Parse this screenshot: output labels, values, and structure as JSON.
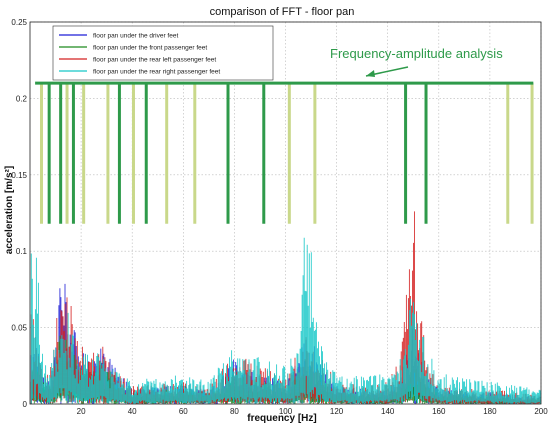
{
  "chart_data": {
    "type": "line",
    "title": "comparison of FFT - floor pan",
    "xlabel": "frequency [Hz]",
    "ylabel": "acceleration [m/s²]",
    "xlim": [
      0,
      200
    ],
    "ylim": [
      0,
      0.25
    ],
    "xticks": [
      20,
      40,
      60,
      80,
      100,
      120,
      140,
      160,
      180,
      200
    ],
    "xtick_labels": [
      "20",
      "40",
      "60",
      "80",
      "100",
      "120",
      "140",
      "160",
      "180",
      "200"
    ],
    "yticks": [
      0,
      0.05,
      0.1,
      0.15,
      0.2,
      0.25
    ],
    "ytick_labels": [
      "0",
      "0.05",
      "0.1",
      "0.15",
      "0.2",
      "0.25"
    ],
    "grid": true,
    "legend_position": "top-left",
    "series": [
      {
        "name": "floor pan under the driver feet",
        "color": "#1f1fd6",
        "x": [
          2,
          5,
          8,
          10,
          12,
          15,
          18,
          20,
          25,
          28,
          30,
          35,
          40,
          50,
          60,
          70,
          80,
          90,
          100,
          105,
          108,
          115,
          120,
          130,
          140,
          145,
          150,
          155,
          160,
          170,
          180,
          190,
          200
        ],
        "y": [
          0.05,
          0.02,
          0.02,
          0.04,
          0.09,
          0.07,
          0.045,
          0.035,
          0.03,
          0.05,
          0.035,
          0.02,
          0.01,
          0.012,
          0.012,
          0.01,
          0.03,
          0.02,
          0.015,
          0.03,
          0.05,
          0.025,
          0.012,
          0.01,
          0.01,
          0.02,
          0.055,
          0.02,
          0.01,
          0.008,
          0.008,
          0.006,
          0.005
        ]
      },
      {
        "name": "floor pan under the front passenger feet",
        "color": "#1f8a1f",
        "x": [
          2,
          5,
          8,
          10,
          12,
          15,
          18,
          20,
          25,
          28,
          30,
          35,
          40,
          50,
          60,
          70,
          80,
          90,
          100,
          105,
          108,
          115,
          120,
          130,
          140,
          145,
          150,
          155,
          160,
          170,
          180,
          190,
          200
        ],
        "y": [
          0.03,
          0.015,
          0.015,
          0.025,
          0.05,
          0.04,
          0.03,
          0.025,
          0.02,
          0.03,
          0.025,
          0.015,
          0.008,
          0.009,
          0.01,
          0.008,
          0.02,
          0.015,
          0.01,
          0.02,
          0.03,
          0.015,
          0.008,
          0.007,
          0.007,
          0.012,
          0.03,
          0.012,
          0.007,
          0.006,
          0.005,
          0.004,
          0.004
        ]
      },
      {
        "name": "floor pan under the rear left passenger feet",
        "color": "#d42020",
        "x": [
          2,
          5,
          8,
          10,
          12,
          15,
          18,
          20,
          25,
          28,
          30,
          35,
          40,
          50,
          60,
          70,
          80,
          90,
          100,
          105,
          108,
          115,
          120,
          130,
          140,
          145,
          150,
          155,
          160,
          170,
          180,
          190,
          200
        ],
        "y": [
          0.06,
          0.02,
          0.025,
          0.045,
          0.1,
          0.08,
          0.05,
          0.04,
          0.035,
          0.045,
          0.03,
          0.02,
          0.012,
          0.014,
          0.015,
          0.012,
          0.035,
          0.025,
          0.018,
          0.035,
          0.05,
          0.03,
          0.015,
          0.012,
          0.015,
          0.03,
          0.15,
          0.03,
          0.012,
          0.01,
          0.01,
          0.008,
          0.006
        ]
      },
      {
        "name": "floor pan under the rear right passenger feet",
        "color": "#16c8c8",
        "x": [
          2,
          5,
          8,
          10,
          12,
          15,
          18,
          20,
          25,
          28,
          30,
          35,
          40,
          50,
          60,
          70,
          80,
          90,
          100,
          105,
          108,
          115,
          120,
          130,
          140,
          145,
          150,
          155,
          160,
          170,
          180,
          190,
          200
        ],
        "y": [
          0.12,
          0.03,
          0.03,
          0.04,
          0.08,
          0.06,
          0.04,
          0.035,
          0.03,
          0.04,
          0.03,
          0.02,
          0.015,
          0.018,
          0.02,
          0.015,
          0.04,
          0.03,
          0.025,
          0.04,
          0.13,
          0.03,
          0.02,
          0.018,
          0.02,
          0.03,
          0.08,
          0.04,
          0.02,
          0.018,
          0.015,
          0.012,
          0.01
        ]
      }
    ],
    "annotation": {
      "text": "Frequency-amplitude analysis",
      "color": "#2e9a4a",
      "bar_y": 0.21,
      "bar_y_bottom": 0.118,
      "markers": [
        {
          "x": 4.5,
          "color": "#c9d88a"
        },
        {
          "x": 7.5,
          "color": "#2e9a4a"
        },
        {
          "x": 12,
          "color": "#2e9a4a"
        },
        {
          "x": 14.5,
          "color": "#c9d88a"
        },
        {
          "x": 17,
          "color": "#2e9a4a"
        },
        {
          "x": 21,
          "color": "#c9d88a"
        },
        {
          "x": 30.5,
          "color": "#c9d88a"
        },
        {
          "x": 35,
          "color": "#2e9a4a"
        },
        {
          "x": 40.5,
          "color": "#c9d88a"
        },
        {
          "x": 45.5,
          "color": "#2e9a4a"
        },
        {
          "x": 53.5,
          "color": "#c9d88a"
        },
        {
          "x": 64.5,
          "color": "#c9d88a"
        },
        {
          "x": 77.5,
          "color": "#2e9a4a"
        },
        {
          "x": 91.5,
          "color": "#2e9a4a"
        },
        {
          "x": 101.5,
          "color": "#c9d88a"
        },
        {
          "x": 111.5,
          "color": "#c9d88a"
        },
        {
          "x": 147,
          "color": "#2e9a4a"
        },
        {
          "x": 155,
          "color": "#2e9a4a"
        },
        {
          "x": 187,
          "color": "#c9d88a"
        },
        {
          "x": 196.5,
          "color": "#c9d88a"
        }
      ]
    }
  }
}
